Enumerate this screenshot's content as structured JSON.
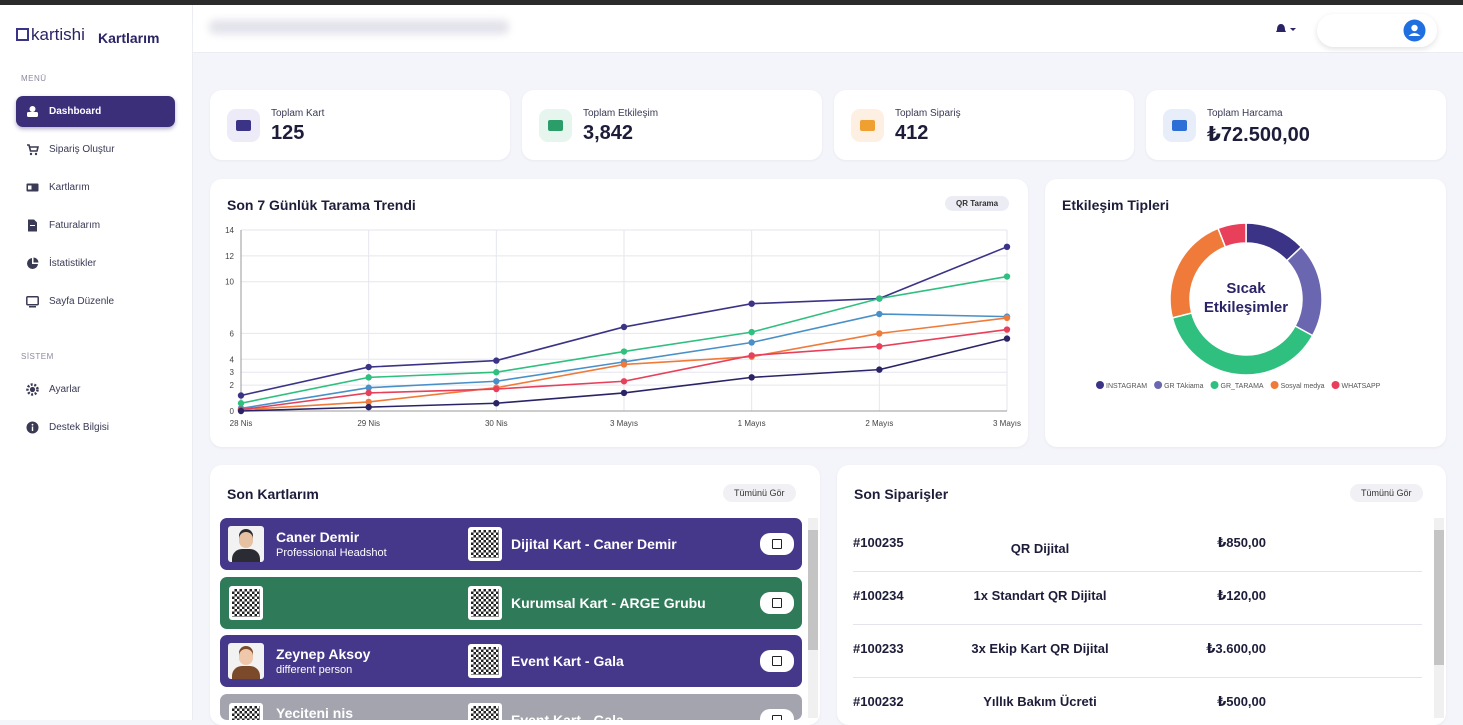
{
  "sidebar": {
    "logo": "kartishi",
    "title": "Kartlarım",
    "menu_heading": "MENÜ",
    "menu": [
      "Dashboard",
      "Sipariş Oluştur",
      "Kartlarım",
      "Faturalarım",
      "İstatistikler",
      "Sayfa Düzenle"
    ],
    "system_heading": "SİSTEM",
    "system": [
      "Ayarlar",
      "Destek Bilgisi"
    ]
  },
  "stats": [
    {
      "label": "Toplam Kart",
      "value": "125"
    },
    {
      "label": "Toplam Etkileşim",
      "value": "3,842"
    },
    {
      "label": "Toplam Sipariş",
      "value": "412"
    },
    {
      "label": "Toplam Harcama",
      "value": "₺72.500,00"
    }
  ],
  "chart_data": [
    {
      "type": "line",
      "title": "Son 7 Günlük Tarama Trendi",
      "badge": "QR Tarama",
      "categories": [
        "28 Nis",
        "29 Nis",
        "30 Nis",
        "3 Mayıs",
        "1 Mayıs",
        "2 Mayıs",
        "3 Mayıs"
      ],
      "series": [
        {
          "color": "#3b3486",
          "values": [
            1.2,
            3.4,
            3.9,
            6.5,
            8.3,
            8.7,
            12.7
          ]
        },
        {
          "color": "#4a90c8",
          "values": [
            0.2,
            1.8,
            2.3,
            3.8,
            5.3,
            7.5,
            7.3
          ]
        },
        {
          "color": "#2fbf7f",
          "values": [
            0.6,
            2.6,
            3.0,
            4.6,
            6.1,
            8.7,
            10.4
          ]
        },
        {
          "color": "#f07a3a",
          "values": [
            0.1,
            0.7,
            1.8,
            3.6,
            4.2,
            6.0,
            7.2
          ]
        },
        {
          "color": "#e8405a",
          "values": [
            0.1,
            1.4,
            1.7,
            2.3,
            4.3,
            5.0,
            6.3
          ]
        },
        {
          "color": "#2a2466",
          "values": [
            0.0,
            0.3,
            0.6,
            1.4,
            2.6,
            3.2,
            5.6
          ]
        }
      ],
      "ylim": [
        0,
        14
      ],
      "yticks": [
        0,
        2,
        3,
        4,
        6,
        10,
        12,
        14
      ],
      "grid": true
    },
    {
      "type": "pie",
      "title": "Etkileşim Tipleri",
      "center_text": "Sıcak Etkileşimler",
      "categories": [
        "INSTAGRAM",
        "GR TAkiama",
        "GR_TARAMA",
        "Sosyal medya",
        "WHATSAPP"
      ],
      "values": [
        13,
        20,
        38,
        23,
        6
      ],
      "colors": [
        "#3b3486",
        "#6a67b0",
        "#2fbf7f",
        "#f07a3a",
        "#e8405a"
      ],
      "donut": true
    }
  ],
  "recent_cards": {
    "title": "Son Kartlarım",
    "button": "Tümünü Gör",
    "items": [
      {
        "name": "Caner Demir",
        "subtitle": "Professional Headshot",
        "card": "Dijital Kart - Caner Demir"
      },
      {
        "card": "Kurumsal Kart - ARGE Grubu"
      },
      {
        "name": "Zeynep Aksoy",
        "subtitle": "different person",
        "card": "Event Kart - Gala"
      },
      {
        "name": "Yeciteni nis",
        "card": "Event Kart - Gala"
      }
    ]
  },
  "recent_orders": {
    "title": "Son Siparişler",
    "button": "Tümünü Gör",
    "rows": [
      [
        "#100235",
        "QR Dijital",
        "₺850,00"
      ],
      [
        "#100234",
        "1x Standart QR Dijital",
        "₺120,00"
      ],
      [
        "#100233",
        "3x Ekip Kart QR Dijital",
        "₺3.600,00"
      ],
      [
        "#100232",
        "Yıllık Bakım Ücreti",
        "₺500,00"
      ]
    ]
  }
}
